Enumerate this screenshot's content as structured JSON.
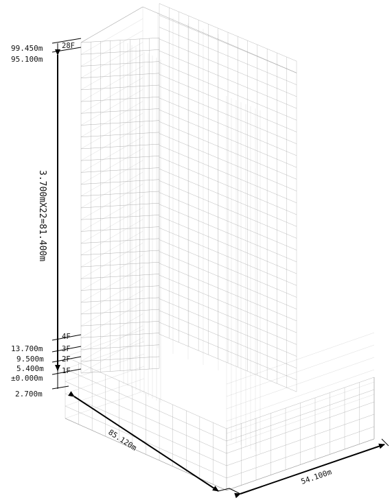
{
  "elevations": {
    "top": "99.450m",
    "roof": "95.100m",
    "fourth": "13.700m",
    "third": "9.500m",
    "second": "5.400m",
    "ground": "±0.000m",
    "base": "2.700m"
  },
  "floors": {
    "f28": "28F",
    "f4": "4F",
    "f3": "3F",
    "f2": "2F",
    "f1": "1F"
  },
  "typical_height": "3.700mX22=81.400m",
  "dimensions": {
    "length": "85.120m",
    "width": "54.100m"
  },
  "colors": {
    "wire": "#9a9a9a",
    "ink": "#000000"
  }
}
